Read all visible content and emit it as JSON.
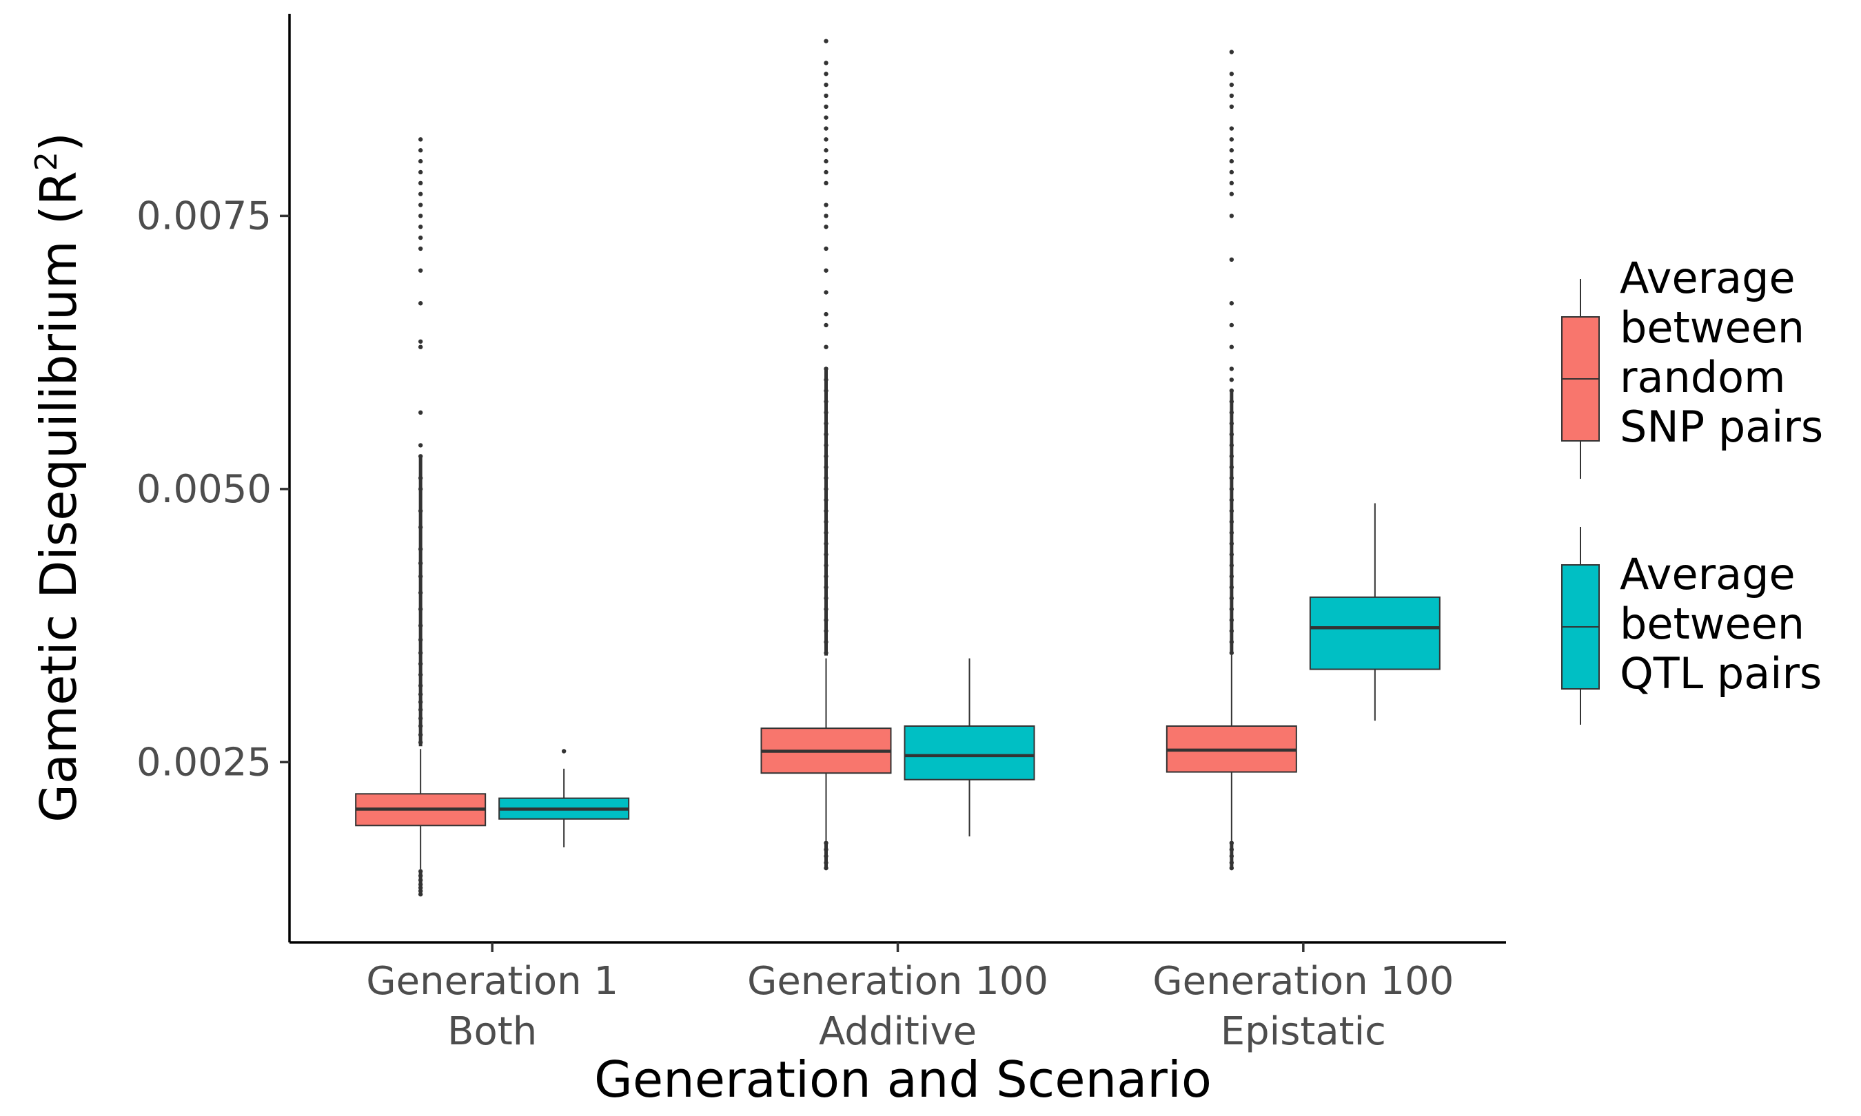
{
  "chart_data": {
    "type": "boxplot",
    "xlabel": "Generation and Scenario",
    "ylabel": "Gametic Disequilibrium (R",
    "ylabel_superscript": "2",
    "ylabel_close": ")",
    "ylim": [
      0.00085,
      0.00935
    ],
    "yticks": [
      0.0025,
      0.005,
      0.0075
    ],
    "ytick_labels": [
      "0.0025",
      "0.0050",
      "0.0075"
    ],
    "grid": false,
    "legend_position": "right",
    "categories": [
      {
        "line1": "Generation 1",
        "line2": "Both"
      },
      {
        "line1": "Generation 100",
        "line2": "Additive"
      },
      {
        "line1": "Generation 100",
        "line2": "Epistatic"
      }
    ],
    "series": [
      {
        "name_lines": [
          "Average",
          "between",
          "random",
          "SNP pairs"
        ],
        "color": "#F8766D",
        "boxes": [
          {
            "whisker_low": 0.00152,
            "q1": 0.00192,
            "median": 0.00207,
            "q3": 0.00221,
            "whisker_high": 0.00262,
            "outliers_low": [
              0.0015,
              0.00146,
              0.00142,
              0.00138,
              0.00135,
              0.00132,
              0.00129
            ],
            "outliers_high": [
              0.00268,
              0.00275,
              0.00283,
              0.0029,
              0.00298,
              0.00305,
              0.00312,
              0.0032,
              0.0033,
              0.0034,
              0.0035,
              0.00362,
              0.00375,
              0.0039,
              0.00405,
              0.0042,
              0.00432,
              0.00445,
              0.00465,
              0.0048,
              0.005,
              0.0051,
              0.0053,
              0.0054,
              0.0057,
              0.0063,
              0.00635,
              0.0067,
              0.007,
              0.0072,
              0.0073,
              0.0074,
              0.0075,
              0.0076,
              0.0077,
              0.0078,
              0.0079,
              0.008,
              0.0081,
              0.0082
            ]
          },
          {
            "whisker_low": 0.00178,
            "q1": 0.0024,
            "median": 0.0026,
            "q3": 0.00281,
            "whisker_high": 0.00345,
            "outliers_low": [
              0.00176,
              0.0017,
              0.00164,
              0.00158,
              0.00153
            ],
            "outliers_high": [
              0.0035,
              0.0036,
              0.0037,
              0.0038,
              0.0039,
              0.004,
              0.0041,
              0.0042,
              0.0043,
              0.0044,
              0.0045,
              0.0046,
              0.0047,
              0.0048,
              0.0049,
              0.005,
              0.0051,
              0.0052,
              0.0053,
              0.0054,
              0.0055,
              0.0056,
              0.0057,
              0.0058,
              0.0059,
              0.006,
              0.0061,
              0.0063,
              0.0065,
              0.0066,
              0.0068,
              0.007,
              0.0072,
              0.0074,
              0.0075,
              0.0076,
              0.0078,
              0.0079,
              0.008,
              0.0081,
              0.0082,
              0.0083,
              0.0084,
              0.0085,
              0.0086,
              0.0087,
              0.0088,
              0.0089,
              0.0091
            ]
          },
          {
            "whisker_low": 0.00178,
            "q1": 0.00241,
            "median": 0.00261,
            "q3": 0.00283,
            "whisker_high": 0.00348,
            "outliers_low": [
              0.00176,
              0.0017,
              0.00164,
              0.00158,
              0.00153
            ],
            "outliers_high": [
              0.0035,
              0.0036,
              0.0037,
              0.0038,
              0.0039,
              0.004,
              0.0041,
              0.0042,
              0.0043,
              0.0044,
              0.0045,
              0.0046,
              0.0047,
              0.0048,
              0.0049,
              0.005,
              0.0051,
              0.0052,
              0.0053,
              0.0054,
              0.0055,
              0.0056,
              0.0057,
              0.0058,
              0.0059,
              0.006,
              0.0061,
              0.0063,
              0.0065,
              0.0067,
              0.0071,
              0.0075,
              0.0077,
              0.0078,
              0.0079,
              0.008,
              0.0081,
              0.0082,
              0.0083,
              0.0085,
              0.0086,
              0.0087,
              0.0088,
              0.009
            ]
          }
        ]
      },
      {
        "name_lines": [
          "Average",
          "between",
          "QTL pairs"
        ],
        "color": "#00BFC4",
        "boxes": [
          {
            "whisker_low": 0.00172,
            "q1": 0.00198,
            "median": 0.00207,
            "q3": 0.00217,
            "whisker_high": 0.00244,
            "outliers_low": [],
            "outliers_high": [
              0.0026
            ]
          },
          {
            "whisker_low": 0.00182,
            "q1": 0.00234,
            "median": 0.00256,
            "q3": 0.00283,
            "whisker_high": 0.00345,
            "outliers_low": [],
            "outliers_high": []
          },
          {
            "whisker_low": 0.00288,
            "q1": 0.00335,
            "median": 0.00373,
            "q3": 0.00401,
            "whisker_high": 0.00487,
            "outliers_low": [],
            "outliers_high": []
          }
        ]
      }
    ]
  }
}
